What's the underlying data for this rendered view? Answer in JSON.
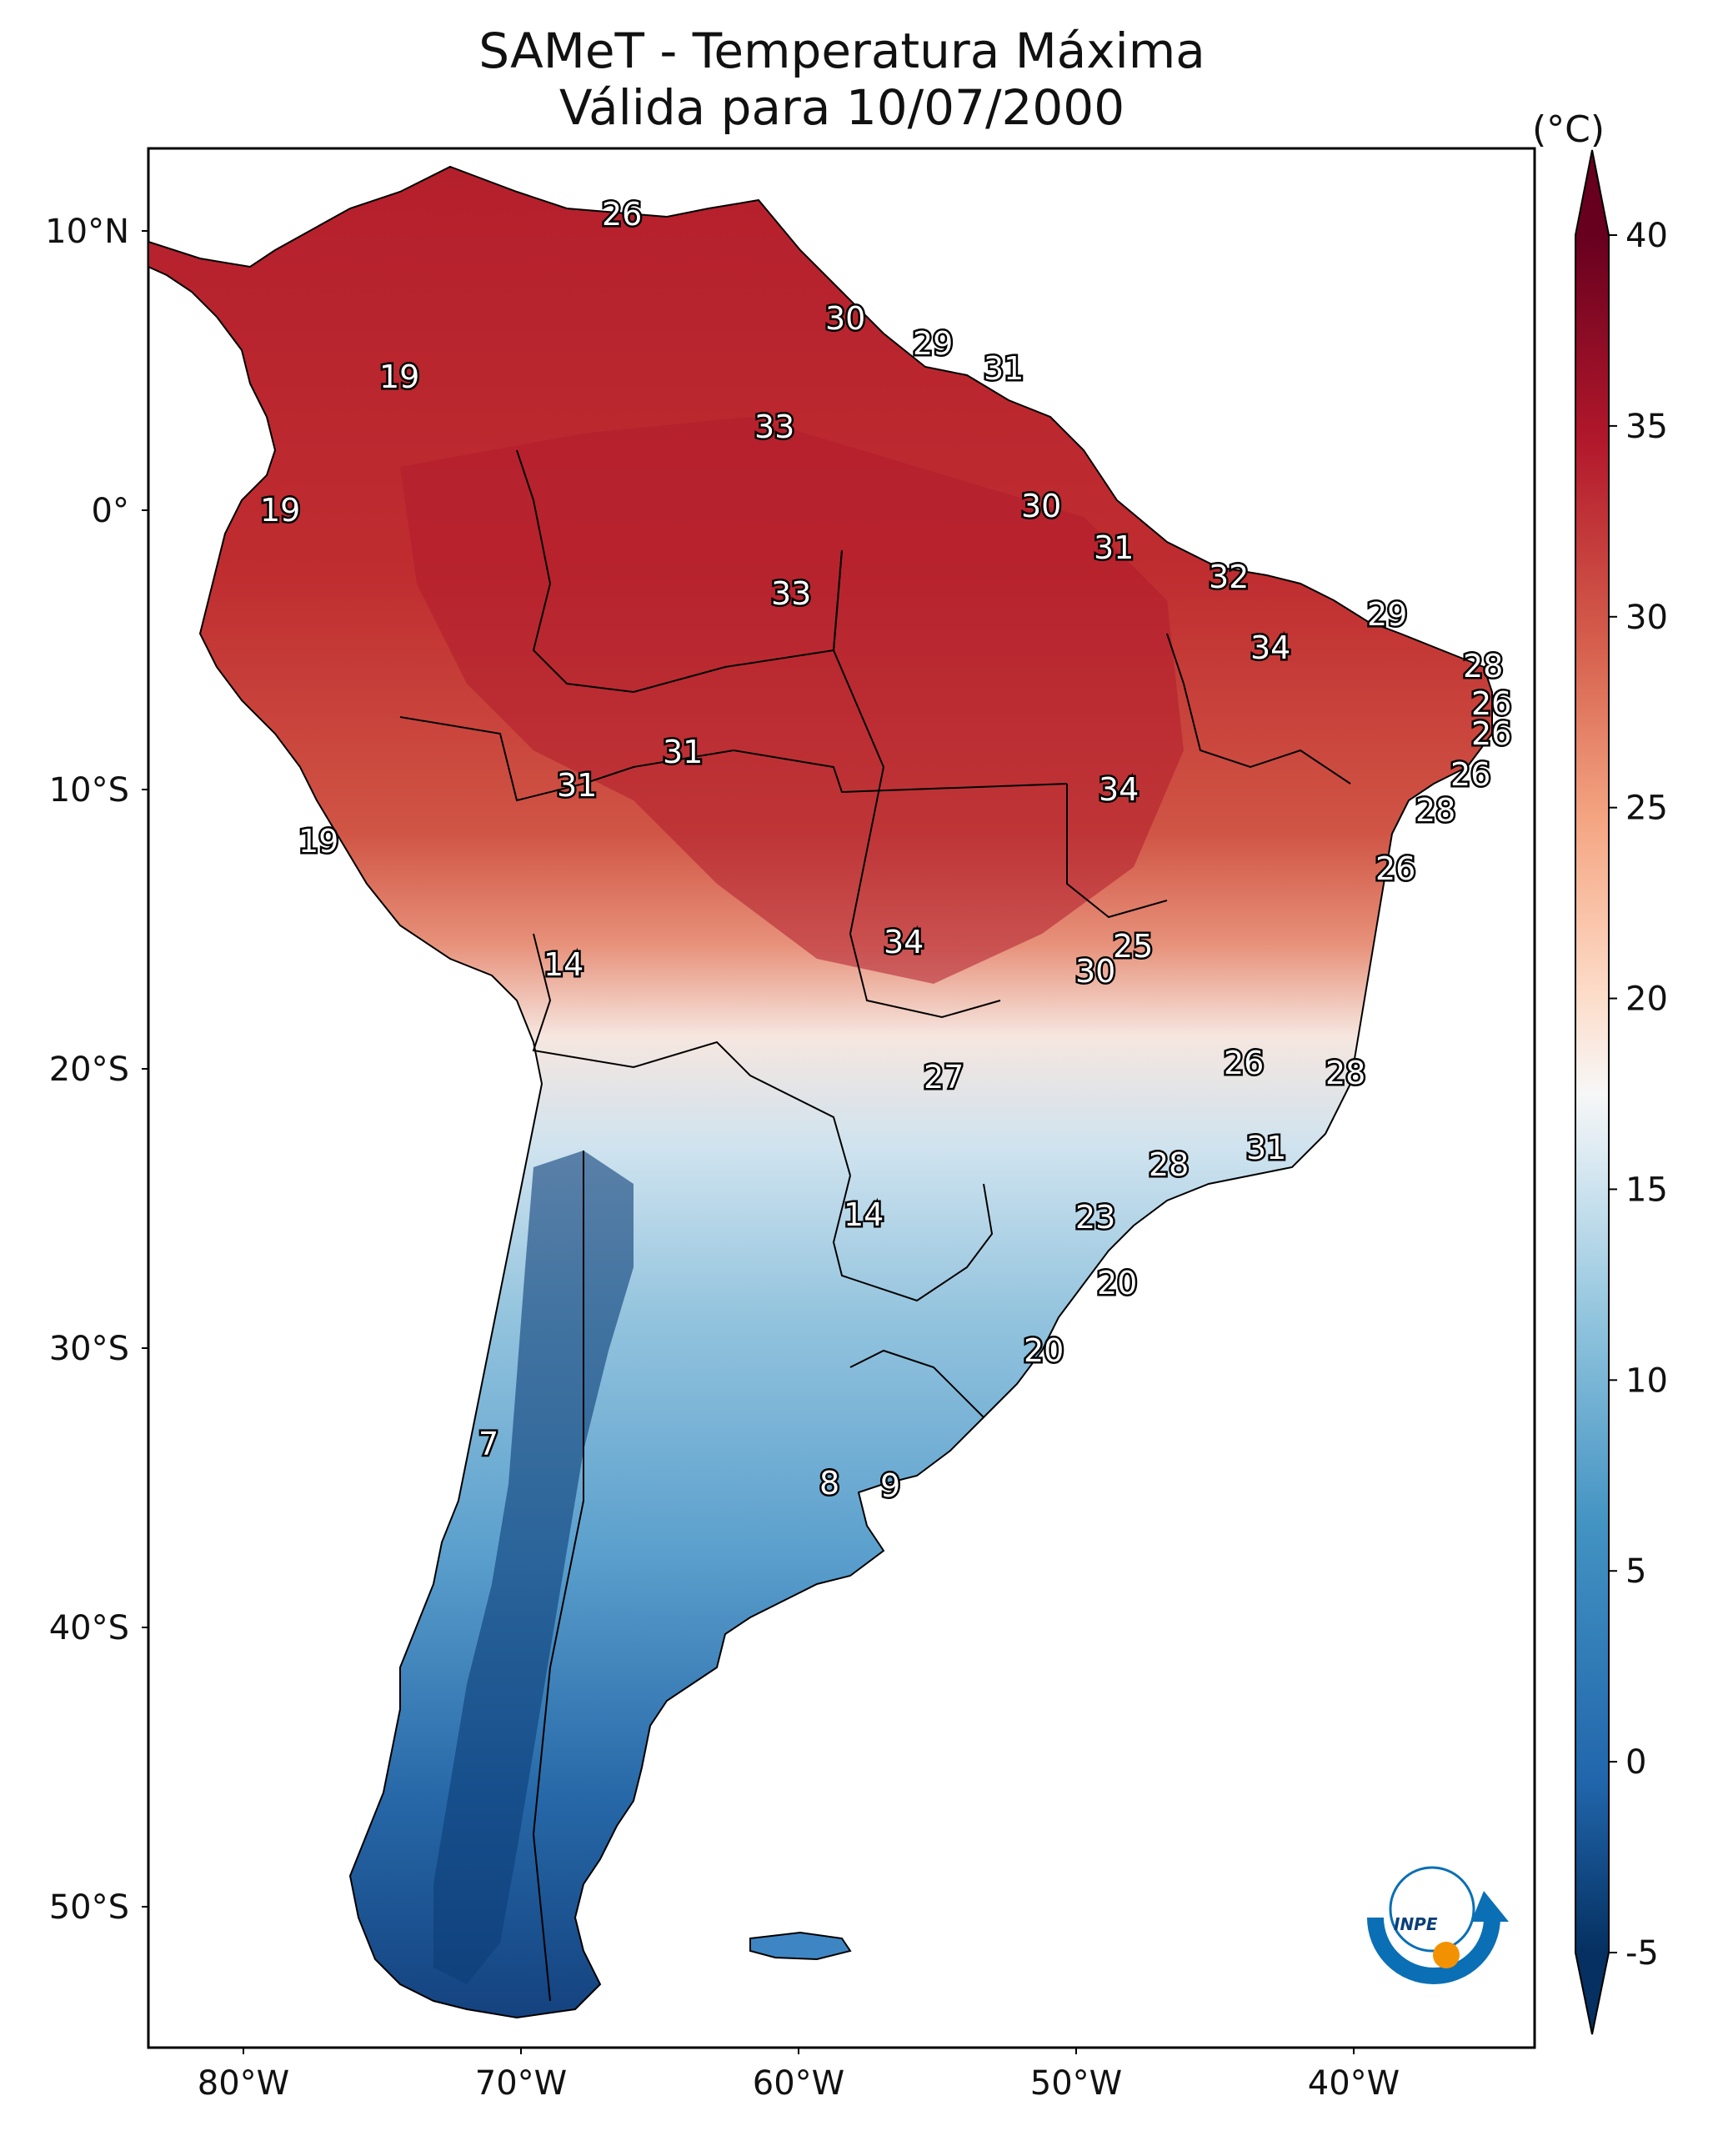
{
  "title": {
    "line1": "SAMeT - Temperatura Máxima",
    "line2": "Válida para 10/07/2000"
  },
  "axes": {
    "lat_labels": [
      "10°N",
      "0°",
      "10°S",
      "20°S",
      "30°S",
      "40°S",
      "50°S"
    ],
    "lon_labels": [
      "80°W",
      "70°W",
      "60°W",
      "50°W",
      "40°W"
    ]
  },
  "colorbar": {
    "unit": "(°C)",
    "ticks": [
      "40",
      "35",
      "30",
      "25",
      "20",
      "15",
      "10",
      "5",
      "0",
      "-5"
    ],
    "range": [
      -5,
      40
    ],
    "extend": "both",
    "colormap": [
      "#053061",
      "#2166ac",
      "#4393c3",
      "#92c5de",
      "#d1e5f0",
      "#f7f7f7",
      "#fddbc7",
      "#f4a582",
      "#d6604d",
      "#b2182b",
      "#67001f"
    ]
  },
  "isotherm_labels": [
    "26",
    "19",
    "30",
    "29",
    "31",
    "33",
    "19",
    "30",
    "31",
    "33",
    "32",
    "34",
    "29",
    "28",
    "26",
    "26",
    "31",
    "31",
    "26",
    "19",
    "34",
    "28",
    "26",
    "14",
    "34",
    "25",
    "30",
    "26",
    "28",
    "27",
    "31",
    "28",
    "14",
    "23",
    "20",
    "20",
    "7",
    "8",
    "9"
  ],
  "logo": {
    "text": "INPE",
    "colors": [
      "#0a6fb5",
      "#f39200"
    ]
  }
}
